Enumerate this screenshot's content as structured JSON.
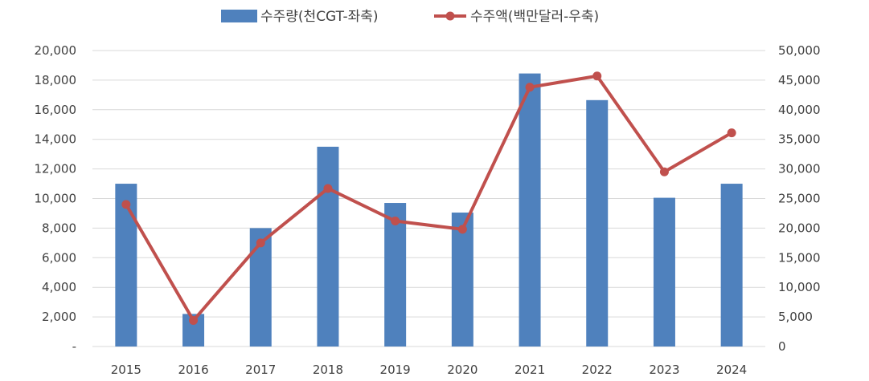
{
  "chart_data": {
    "type": "bar+line",
    "categories": [
      "2015",
      "2016",
      "2017",
      "2018",
      "2019",
      "2020",
      "2021",
      "2022",
      "2023",
      "2024"
    ],
    "series": [
      {
        "name": "수주량(천CGT-좌축)",
        "type": "bar",
        "axis": "left",
        "color": "#4F81BD",
        "values": [
          11000,
          2200,
          8000,
          13500,
          9700,
          9050,
          18450,
          16650,
          10050,
          11000
        ]
      },
      {
        "name": "수주액(백만달러-우축)",
        "type": "line",
        "axis": "right",
        "color": "#C0504D",
        "marker": "circle",
        "values": [
          24000,
          4400,
          17500,
          26700,
          21200,
          19800,
          43800,
          45700,
          29500,
          36100
        ]
      }
    ],
    "y_left": {
      "ylim": [
        0,
        20000
      ],
      "ticks": [
        "-",
        "2,000",
        "4,000",
        "6,000",
        "8,000",
        "10,000",
        "12,000",
        "14,000",
        "16,000",
        "18,000",
        "20,000"
      ],
      "tick_values": [
        0,
        2000,
        4000,
        6000,
        8000,
        10000,
        12000,
        14000,
        16000,
        18000,
        20000
      ]
    },
    "y_right": {
      "ylim": [
        0,
        50000
      ],
      "ticks": [
        "0",
        "5,000",
        "10,000",
        "15,000",
        "20,000",
        "25,000",
        "30,000",
        "35,000",
        "40,000",
        "45,000",
        "50,000"
      ],
      "tick_values": [
        0,
        5000,
        10000,
        15000,
        20000,
        25000,
        30000,
        35000,
        40000,
        45000,
        50000
      ]
    },
    "grid": true,
    "legend_position": "top"
  }
}
